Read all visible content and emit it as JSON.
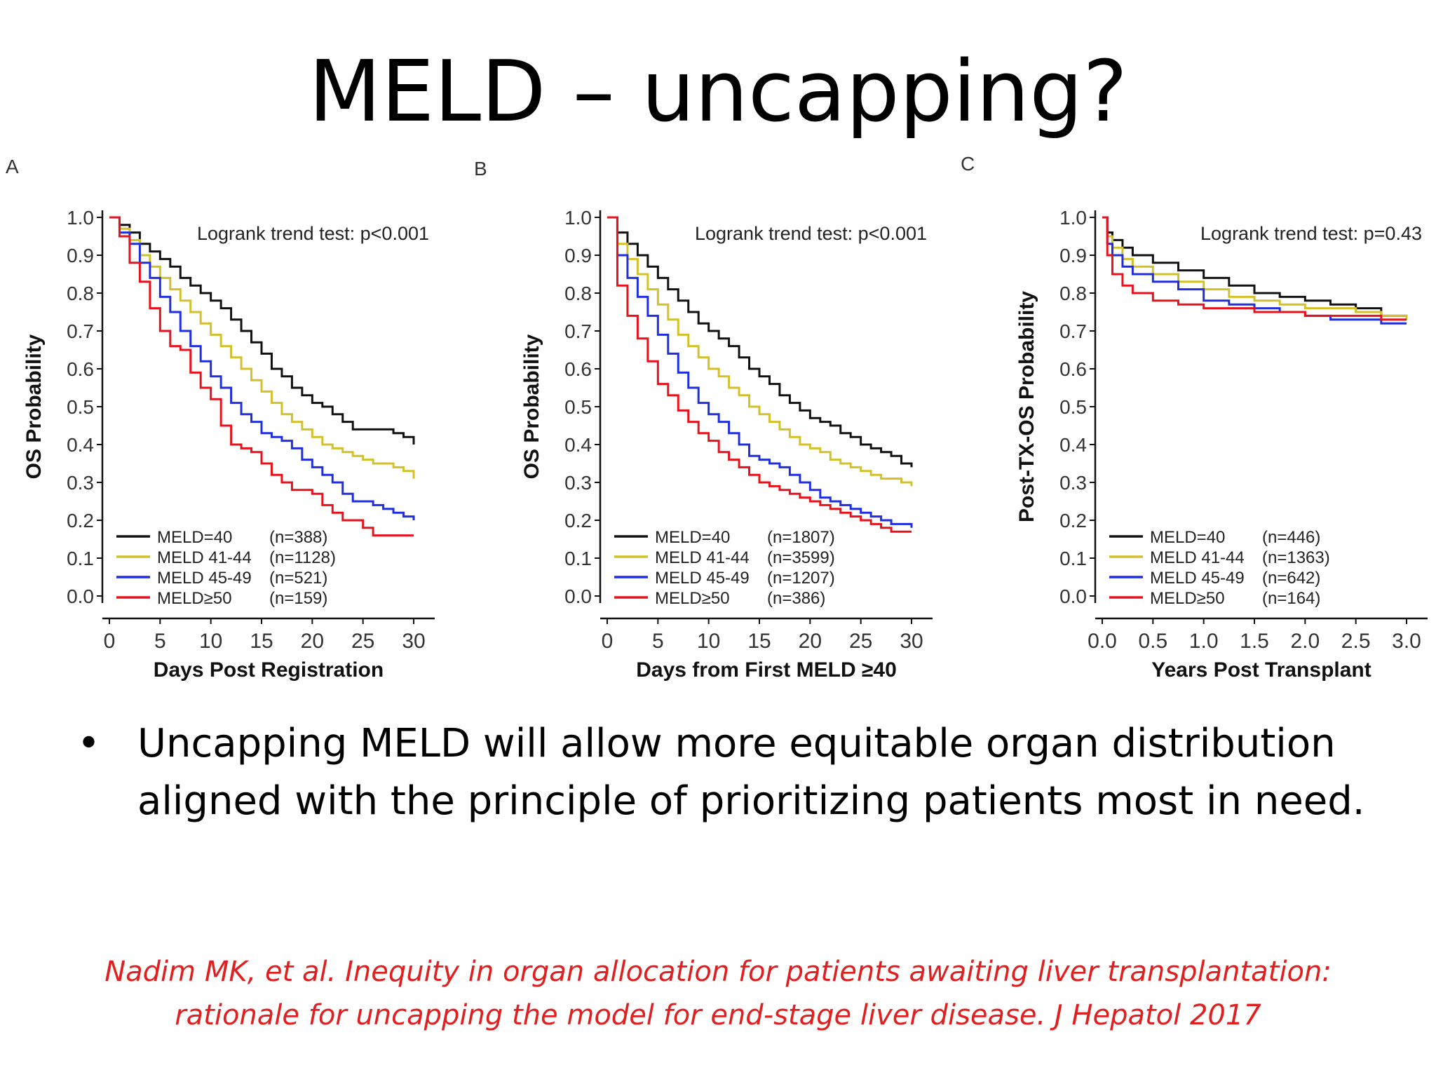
{
  "slide": {
    "title": "MELD – uncapping?",
    "bullet": "Uncapping MELD will allow more equitable organ distribution aligned with the principle of prioritizing patients most in need.",
    "citation_line1": "Nadim MK, et al. Inequity in organ allocation for patients awaiting liver transplantation:",
    "citation_line2": "rationale for uncapping the model for end-stage liver disease. J Hepatol 2017"
  },
  "colors": {
    "meld40": "#111111",
    "meld41_44": "#d4c12a",
    "meld45_49": "#1f2fe0",
    "meld50": "#e8121c"
  },
  "chart_data": [
    {
      "panel": "A",
      "type": "line",
      "step": true,
      "annotation": "Logrank trend test: p<0.001",
      "xlabel": "Days Post Registration",
      "ylabel": "OS Probability",
      "xlim": [
        0,
        30
      ],
      "ylim": [
        0,
        1
      ],
      "xticks": [
        "0",
        "5",
        "10",
        "15",
        "20",
        "25",
        "30"
      ],
      "yticks": [
        "0.0",
        "0.1",
        "0.2",
        "0.3",
        "0.4",
        "0.5",
        "0.6",
        "0.7",
        "0.8",
        "0.9",
        "1.0"
      ],
      "legend_position": "bottom-left",
      "series": [
        {
          "name": "MELD=40",
          "n": "(n=388)",
          "color_key": "meld40",
          "x": [
            0,
            1,
            2,
            3,
            4,
            5,
            6,
            7,
            8,
            9,
            10,
            11,
            12,
            13,
            14,
            15,
            16,
            17,
            18,
            19,
            20,
            21,
            22,
            23,
            24,
            25,
            26,
            27,
            28,
            29,
            30
          ],
          "y": [
            1.0,
            0.98,
            0.96,
            0.93,
            0.91,
            0.89,
            0.87,
            0.84,
            0.82,
            0.8,
            0.78,
            0.76,
            0.73,
            0.7,
            0.67,
            0.64,
            0.6,
            0.58,
            0.55,
            0.53,
            0.51,
            0.5,
            0.48,
            0.46,
            0.44,
            0.44,
            0.44,
            0.44,
            0.43,
            0.42,
            0.4
          ]
        },
        {
          "name": "MELD 41-44",
          "n": "(n=1128)",
          "color_key": "meld41_44",
          "x": [
            0,
            1,
            2,
            3,
            4,
            5,
            6,
            7,
            8,
            9,
            10,
            11,
            12,
            13,
            14,
            15,
            16,
            17,
            18,
            19,
            20,
            21,
            22,
            23,
            24,
            25,
            26,
            27,
            28,
            29,
            30
          ],
          "y": [
            1.0,
            0.97,
            0.94,
            0.9,
            0.87,
            0.84,
            0.81,
            0.78,
            0.75,
            0.72,
            0.69,
            0.66,
            0.63,
            0.6,
            0.57,
            0.54,
            0.51,
            0.48,
            0.46,
            0.44,
            0.42,
            0.4,
            0.39,
            0.38,
            0.37,
            0.36,
            0.35,
            0.35,
            0.34,
            0.33,
            0.31
          ]
        },
        {
          "name": "MELD 45-49",
          "n": "(n=521)",
          "color_key": "meld45_49",
          "x": [
            0,
            1,
            2,
            3,
            4,
            5,
            6,
            7,
            8,
            9,
            10,
            11,
            12,
            13,
            14,
            15,
            16,
            17,
            18,
            19,
            20,
            21,
            22,
            23,
            24,
            25,
            26,
            27,
            28,
            29,
            30
          ],
          "y": [
            1.0,
            0.96,
            0.93,
            0.88,
            0.84,
            0.79,
            0.75,
            0.7,
            0.66,
            0.62,
            0.58,
            0.55,
            0.51,
            0.48,
            0.46,
            0.43,
            0.42,
            0.41,
            0.39,
            0.36,
            0.34,
            0.32,
            0.3,
            0.27,
            0.25,
            0.25,
            0.24,
            0.23,
            0.22,
            0.21,
            0.2
          ]
        },
        {
          "name": "MELD≥50",
          "n": "(n=159)",
          "color_key": "meld50",
          "x": [
            0,
            1,
            2,
            3,
            4,
            5,
            6,
            7,
            8,
            9,
            10,
            11,
            12,
            13,
            14,
            15,
            16,
            17,
            18,
            19,
            20,
            21,
            22,
            23,
            24,
            25,
            26,
            27,
            28,
            29,
            30
          ],
          "y": [
            1.0,
            0.95,
            0.88,
            0.83,
            0.76,
            0.7,
            0.66,
            0.65,
            0.59,
            0.55,
            0.52,
            0.45,
            0.4,
            0.39,
            0.38,
            0.35,
            0.32,
            0.3,
            0.28,
            0.28,
            0.27,
            0.24,
            0.22,
            0.2,
            0.2,
            0.18,
            0.16,
            0.16,
            0.16,
            0.16,
            0.16
          ]
        }
      ]
    },
    {
      "panel": "B",
      "type": "line",
      "step": true,
      "annotation": "Logrank trend test: p<0.001",
      "xlabel": "Days from First MELD ≥40",
      "ylabel": "OS Probability",
      "xlim": [
        0,
        30
      ],
      "ylim": [
        0,
        1
      ],
      "xticks": [
        "0",
        "5",
        "10",
        "15",
        "20",
        "25",
        "30"
      ],
      "yticks": [
        "0.0",
        "0.1",
        "0.2",
        "0.3",
        "0.4",
        "0.5",
        "0.6",
        "0.7",
        "0.8",
        "0.9",
        "1.0"
      ],
      "legend_position": "bottom-left",
      "series": [
        {
          "name": "MELD=40",
          "n": "(n=1807)",
          "color_key": "meld40",
          "x": [
            0,
            1,
            2,
            3,
            4,
            5,
            6,
            7,
            8,
            9,
            10,
            11,
            12,
            13,
            14,
            15,
            16,
            17,
            18,
            19,
            20,
            21,
            22,
            23,
            24,
            25,
            26,
            27,
            28,
            29,
            30
          ],
          "y": [
            1.0,
            0.96,
            0.93,
            0.9,
            0.87,
            0.84,
            0.81,
            0.78,
            0.75,
            0.72,
            0.7,
            0.68,
            0.66,
            0.63,
            0.6,
            0.58,
            0.56,
            0.53,
            0.51,
            0.49,
            0.47,
            0.46,
            0.45,
            0.43,
            0.42,
            0.4,
            0.39,
            0.38,
            0.37,
            0.35,
            0.34
          ]
        },
        {
          "name": "MELD 41-44",
          "n": "(n=3599)",
          "color_key": "meld41_44",
          "x": [
            0,
            1,
            2,
            3,
            4,
            5,
            6,
            7,
            8,
            9,
            10,
            11,
            12,
            13,
            14,
            15,
            16,
            17,
            18,
            19,
            20,
            21,
            22,
            23,
            24,
            25,
            26,
            27,
            28,
            29,
            30
          ],
          "y": [
            1.0,
            0.93,
            0.89,
            0.85,
            0.81,
            0.77,
            0.73,
            0.69,
            0.66,
            0.63,
            0.6,
            0.58,
            0.55,
            0.53,
            0.5,
            0.48,
            0.46,
            0.44,
            0.42,
            0.4,
            0.39,
            0.38,
            0.36,
            0.35,
            0.34,
            0.33,
            0.32,
            0.31,
            0.31,
            0.3,
            0.29
          ]
        },
        {
          "name": "MELD 45-49",
          "n": "(n=1207)",
          "color_key": "meld45_49",
          "x": [
            0,
            1,
            2,
            3,
            4,
            5,
            6,
            7,
            8,
            9,
            10,
            11,
            12,
            13,
            14,
            15,
            16,
            17,
            18,
            19,
            20,
            21,
            22,
            23,
            24,
            25,
            26,
            27,
            28,
            29,
            30
          ],
          "y": [
            1.0,
            0.9,
            0.84,
            0.79,
            0.74,
            0.69,
            0.64,
            0.59,
            0.55,
            0.51,
            0.48,
            0.46,
            0.43,
            0.4,
            0.37,
            0.36,
            0.35,
            0.34,
            0.32,
            0.3,
            0.28,
            0.26,
            0.25,
            0.24,
            0.23,
            0.22,
            0.21,
            0.2,
            0.19,
            0.19,
            0.18
          ]
        },
        {
          "name": "MELD≥50",
          "n": "(n=386)",
          "color_key": "meld50",
          "x": [
            0,
            1,
            2,
            3,
            4,
            5,
            6,
            7,
            8,
            9,
            10,
            11,
            12,
            13,
            14,
            15,
            16,
            17,
            18,
            19,
            20,
            21,
            22,
            23,
            24,
            25,
            26,
            27,
            28,
            29,
            30
          ],
          "y": [
            1.0,
            0.82,
            0.74,
            0.68,
            0.62,
            0.56,
            0.53,
            0.49,
            0.46,
            0.43,
            0.41,
            0.38,
            0.36,
            0.34,
            0.32,
            0.3,
            0.29,
            0.28,
            0.27,
            0.26,
            0.25,
            0.24,
            0.23,
            0.22,
            0.21,
            0.2,
            0.19,
            0.18,
            0.17,
            0.17,
            0.17
          ]
        }
      ]
    },
    {
      "panel": "C",
      "type": "line",
      "step": true,
      "annotation": "Logrank trend test: p=0.43",
      "xlabel": "Years Post Transplant",
      "ylabel": "Post-TX-OS Probability",
      "xlim": [
        0,
        3
      ],
      "ylim": [
        0,
        1
      ],
      "xticks": [
        "0.0",
        "0.5",
        "1.0",
        "1.5",
        "2.0",
        "2.5",
        "3.0"
      ],
      "yticks": [
        "0.0",
        "0.1",
        "0.2",
        "0.3",
        "0.4",
        "0.5",
        "0.6",
        "0.7",
        "0.8",
        "0.9",
        "1.0"
      ],
      "legend_position": "bottom-left",
      "series": [
        {
          "name": "MELD=40",
          "n": "(n=446)",
          "color_key": "meld40",
          "x": [
            0,
            0.05,
            0.1,
            0.2,
            0.3,
            0.5,
            0.75,
            1.0,
            1.25,
            1.5,
            1.75,
            2.0,
            2.25,
            2.5,
            2.75,
            3.0
          ],
          "y": [
            1.0,
            0.96,
            0.94,
            0.92,
            0.9,
            0.88,
            0.86,
            0.84,
            0.82,
            0.8,
            0.79,
            0.78,
            0.77,
            0.76,
            0.74,
            0.73
          ]
        },
        {
          "name": "MELD 41-44",
          "n": "(n=1363)",
          "color_key": "meld41_44",
          "x": [
            0,
            0.05,
            0.1,
            0.2,
            0.3,
            0.5,
            0.75,
            1.0,
            1.25,
            1.5,
            1.75,
            2.0,
            2.25,
            2.5,
            2.75,
            3.0
          ],
          "y": [
            1.0,
            0.95,
            0.92,
            0.89,
            0.87,
            0.85,
            0.83,
            0.81,
            0.79,
            0.78,
            0.77,
            0.76,
            0.76,
            0.75,
            0.74,
            0.73
          ]
        },
        {
          "name": "MELD 45-49",
          "n": "(n=642)",
          "color_key": "meld45_49",
          "x": [
            0,
            0.05,
            0.1,
            0.2,
            0.3,
            0.5,
            0.75,
            1.0,
            1.25,
            1.5,
            1.75,
            2.0,
            2.25,
            2.5,
            2.75,
            3.0
          ],
          "y": [
            1.0,
            0.93,
            0.9,
            0.87,
            0.85,
            0.83,
            0.81,
            0.78,
            0.77,
            0.76,
            0.75,
            0.74,
            0.73,
            0.73,
            0.72,
            0.72
          ]
        },
        {
          "name": "MELD≥50",
          "n": "(n=164)",
          "color_key": "meld50",
          "x": [
            0,
            0.05,
            0.1,
            0.2,
            0.3,
            0.5,
            0.75,
            1.0,
            1.25,
            1.5,
            1.75,
            2.0,
            2.25,
            2.5,
            2.75,
            3.0
          ],
          "y": [
            1.0,
            0.9,
            0.85,
            0.82,
            0.8,
            0.78,
            0.77,
            0.76,
            0.76,
            0.75,
            0.75,
            0.74,
            0.74,
            0.74,
            0.73,
            0.73
          ]
        }
      ]
    }
  ]
}
